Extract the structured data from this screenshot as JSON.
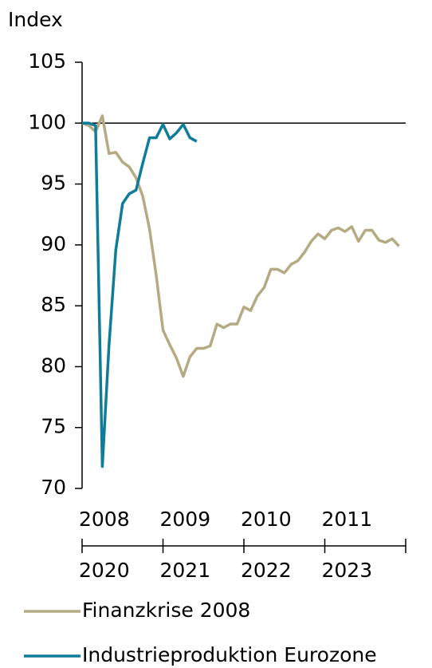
{
  "chart_data": {
    "type": "line",
    "y_axis_label": "Index",
    "ylim": [
      70,
      105
    ],
    "yticks": [
      70,
      75,
      80,
      85,
      90,
      95,
      100,
      105
    ],
    "xlim": [
      0,
      48
    ],
    "xticks": [
      0,
      12,
      24,
      36,
      48
    ],
    "x_label_rows": [
      {
        "color": "#b5ab83",
        "labels": [
          {
            "value": 0,
            "label": "2008"
          },
          {
            "value": 12,
            "label": "2009"
          },
          {
            "value": 24,
            "label": "2010"
          },
          {
            "value": 36,
            "label": "2011"
          }
        ]
      },
      {
        "color": "#0f7c99",
        "labels": [
          {
            "value": 0,
            "label": "2020"
          },
          {
            "value": 12,
            "label": "2021"
          },
          {
            "value": 24,
            "label": "2022"
          },
          {
            "value": 36,
            "label": "2023"
          }
        ]
      }
    ],
    "reference_line": 100,
    "series": [
      {
        "name": "Finanzkrise 2008",
        "color": "#b5ab83",
        "values": [
          100.0,
          99.8,
          99.3,
          100.6,
          97.5,
          97.6,
          96.8,
          96.4,
          95.5,
          94.0,
          91.3,
          87.5,
          83.0,
          81.8,
          80.7,
          79.2,
          80.8,
          81.5,
          81.5,
          81.7,
          83.5,
          83.2,
          83.5,
          83.5,
          84.9,
          84.6,
          85.8,
          86.5,
          88.0,
          88.0,
          87.7,
          88.4,
          88.7,
          89.4,
          90.3,
          90.9,
          90.5,
          91.2,
          91.4,
          91.1,
          91.5,
          90.3,
          91.2,
          91.2,
          90.4,
          90.2,
          90.5,
          89.9
        ]
      },
      {
        "name": "Industrieproduktion Eurozone",
        "color": "#0f7c99",
        "values": [
          100.0,
          100.0,
          99.8,
          71.8,
          81.8,
          89.6,
          93.4,
          94.2,
          94.5,
          96.7,
          98.8,
          98.8,
          99.9,
          98.7,
          99.2,
          99.9,
          98.8,
          98.5
        ]
      }
    ]
  }
}
